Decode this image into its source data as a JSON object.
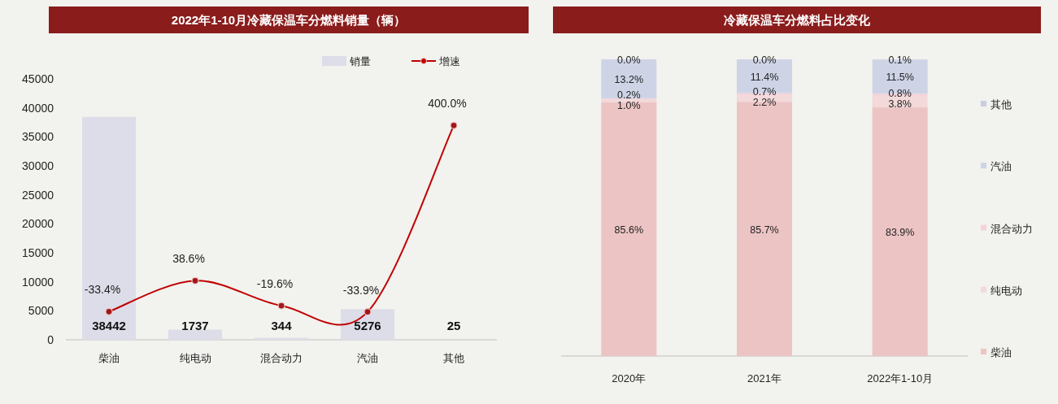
{
  "chart_data": [
    {
      "type": "bar",
      "title": "2022年1-10月冷藏保温车分燃料销量（辆）",
      "categories": [
        "柴油",
        "纯电动",
        "混合动力",
        "汽油",
        "其他"
      ],
      "ylim": [
        0,
        45000
      ],
      "yticks": [
        0,
        5000,
        10000,
        15000,
        20000,
        25000,
        30000,
        35000,
        40000,
        45000
      ],
      "legend": "top right",
      "series": [
        {
          "name": "销量",
          "type": "bar",
          "color": "#dcdde8",
          "values": [
            38442,
            1737,
            344,
            5276,
            25
          ],
          "value_labels": [
            "38442",
            "1737",
            "344",
            "5276",
            "25"
          ]
        },
        {
          "name": "增速",
          "type": "line",
          "axis": "y2",
          "color": "#c00000",
          "marker": "circle",
          "values": [
            -33.4,
            38.6,
            -19.6,
            -33.9,
            400.0
          ],
          "value_labels": [
            "-33.4%",
            "38.6%",
            "-19.6%",
            "-33.9%",
            "400.0%"
          ]
        }
      ]
    },
    {
      "type": "bar",
      "stacked": true,
      "title": "冷藏保温车分燃料占比变化",
      "categories": [
        "2020年",
        "2021年",
        "2022年1-10月"
      ],
      "legend": "right",
      "series": [
        {
          "name": "柴油",
          "color": "#ecc4c4",
          "values": [
            85.6,
            85.7,
            83.9
          ],
          "value_labels": [
            "85.6%",
            "85.7%",
            "83.9%"
          ]
        },
        {
          "name": "纯电动",
          "color": "#f3d9d9",
          "values": [
            1.0,
            2.2,
            3.8
          ],
          "value_labels": [
            "1.0%",
            "2.2%",
            "3.8%"
          ]
        },
        {
          "name": "混合动力",
          "color": "#f5d3da",
          "values": [
            0.2,
            0.7,
            0.8
          ],
          "value_labels": [
            "0.2%",
            "0.7%",
            "0.8%"
          ]
        },
        {
          "name": "汽油",
          "color": "#ced4e6",
          "values": [
            13.2,
            11.4,
            11.5
          ],
          "value_labels": [
            "13.2%",
            "11.4%",
            "11.5%"
          ]
        },
        {
          "name": "其他",
          "color": "#c9cde0",
          "values": [
            0.0,
            0.0,
            0.1
          ],
          "value_labels": [
            "0.0%",
            "0.0%",
            "0.1%"
          ]
        }
      ]
    }
  ]
}
